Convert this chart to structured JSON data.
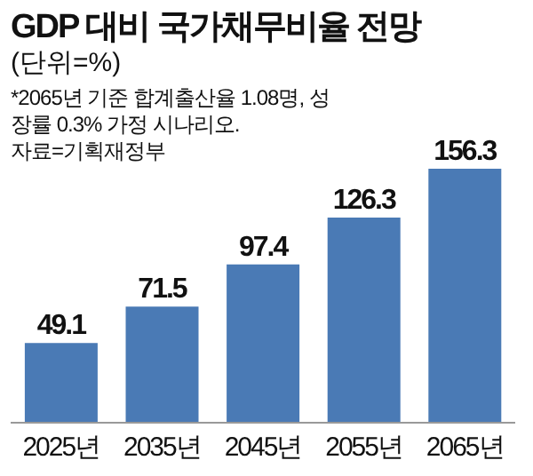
{
  "chart_data": {
    "type": "bar",
    "title": "GDP 대비 국가채무비율 전망",
    "subtitle": "(단위=%)",
    "annotations": [
      "*2065년 기준 합계출산율 1.08명, 성장률 0.3% 가정 시나리오.",
      "자료=기획재정부"
    ],
    "categories": [
      "2025년",
      "2035년",
      "2045년",
      "2055년",
      "2065년"
    ],
    "values": [
      49.1,
      71.5,
      97.4,
      126.3,
      156.3
    ],
    "color": "#4a7ab5",
    "data_labels": true
  }
}
